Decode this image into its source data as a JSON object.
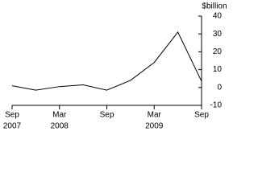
{
  "chart_data": {
    "type": "line",
    "unit_label": "$billion",
    "categories": [
      "Sep",
      null,
      "Mar",
      null,
      "Sep",
      null,
      "Mar",
      null,
      "Sep"
    ],
    "years": [
      "2007",
      null,
      "2008",
      null,
      null,
      null,
      "2009",
      null,
      null
    ],
    "series": [
      {
        "color": "#000000",
        "values": [
          1,
          -1.5,
          0.5,
          1.5,
          -1.5,
          4,
          14,
          31,
          3.5
        ]
      }
    ],
    "ylim": [
      -10,
      40
    ],
    "yticks": [
      -10,
      0,
      10,
      20,
      30,
      40
    ]
  }
}
